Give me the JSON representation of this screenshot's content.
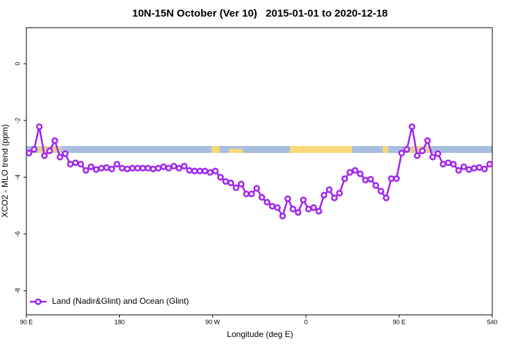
{
  "chart_data": {
    "type": "line",
    "title": "10N-15N October (Ver 10)   2015-01-01 to 2020-12-18",
    "x_label": "Longitude (deg E)",
    "y_label": "XCO2 - MLO trend (ppm)",
    "xlim": [
      90,
      540
    ],
    "ylim": [
      -8.85,
      1.27
    ],
    "xticks": [
      {
        "value": 90,
        "label": "90 E"
      },
      180,
      {
        "value": 270,
        "label": "90 W"
      },
      {
        "value": 360,
        "label": "0"
      },
      {
        "value": 450,
        "label": "90 E"
      },
      540
    ],
    "yticks": [
      0,
      -2,
      -4,
      -6,
      -8
    ],
    "legend_position": "bottom-left",
    "x": [
      92.5,
      97.5,
      102.5,
      107.5,
      112.5,
      117.5,
      122.5,
      127.5,
      132.5,
      137.5,
      142.5,
      147.5,
      152.5,
      157.5,
      162.5,
      167.5,
      172.5,
      177.5,
      182.5,
      187.5,
      192.5,
      197.5,
      202.5,
      207.5,
      212.5,
      217.5,
      222.5,
      227.5,
      232.5,
      237.5,
      242.5,
      247.5,
      252.5,
      257.5,
      262.5,
      267.5,
      272.5,
      277.5,
      282.5,
      287.5,
      292.5,
      297.5,
      302.5,
      307.5,
      312.5,
      317.5,
      322.5,
      327.5,
      332.5,
      337.5,
      342.5,
      347.5,
      352.5,
      357.5,
      362.5,
      367.5,
      372.5,
      377.5,
      382.5,
      387.5,
      392.5,
      397.5,
      402.5,
      407.5,
      412.5,
      417.5,
      422.5,
      427.5,
      432.5,
      437.5,
      442.5,
      447.5,
      452.5,
      457.5,
      462.5,
      467.5,
      472.5,
      477.5,
      482.5,
      487.5,
      492.5,
      497.5,
      502.5,
      507.5,
      512.5,
      517.5,
      522.5,
      527.5,
      532.5,
      537.5
    ],
    "series": [
      {
        "name": "Land (Nadir&Glint) and Ocean (Glint)",
        "color": "#a020f0",
        "values": [
          -3.15,
          -3.02,
          -2.22,
          -3.24,
          -3.07,
          -2.71,
          -3.29,
          -3.17,
          -3.54,
          -3.49,
          -3.54,
          -3.76,
          -3.63,
          -3.73,
          -3.68,
          -3.66,
          -3.71,
          -3.54,
          -3.68,
          -3.71,
          -3.68,
          -3.68,
          -3.68,
          -3.68,
          -3.71,
          -3.68,
          -3.63,
          -3.68,
          -3.61,
          -3.68,
          -3.61,
          -3.76,
          -3.78,
          -3.78,
          -3.78,
          -3.83,
          -3.78,
          -4.0,
          -4.15,
          -4.2,
          -4.37,
          -4.24,
          -4.59,
          -4.59,
          -4.39,
          -4.71,
          -4.88,
          -5.02,
          -5.07,
          -5.37,
          -4.76,
          -5.12,
          -5.24,
          -4.8,
          -5.12,
          -5.07,
          -5.2,
          -4.63,
          -4.44,
          -4.73,
          -4.56,
          -4.05,
          -3.83,
          -3.76,
          -3.88,
          -4.1,
          -4.07,
          -4.29,
          -4.49,
          -4.73,
          -4.05,
          -4.05,
          -3.15,
          -3.02,
          -2.22,
          -3.24,
          -3.07,
          -2.71,
          -3.29,
          -3.17,
          -3.54,
          -3.49,
          -3.54,
          -3.76,
          -3.63,
          -3.73,
          -3.68,
          -3.66,
          -3.71,
          -3.54
        ]
      }
    ]
  }
}
